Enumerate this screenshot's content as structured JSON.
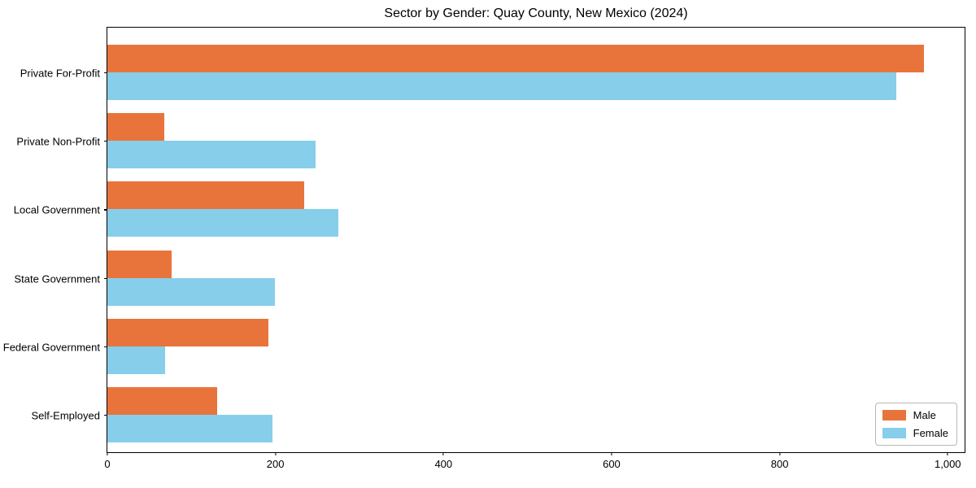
{
  "chart_data": {
    "type": "bar",
    "orientation": "horizontal",
    "title": "Sector by Gender: Quay County, New Mexico (2024)",
    "categories": [
      "Private For-Profit",
      "Private Non-Profit",
      "Local Government",
      "State Government",
      "Federal Government",
      "Self-Employed"
    ],
    "series": [
      {
        "name": "Male",
        "color": "#E8743C",
        "values": [
          972,
          68,
          234,
          76,
          192,
          131
        ]
      },
      {
        "name": "Female",
        "color": "#87CEEB",
        "values": [
          939,
          248,
          275,
          199,
          69,
          196
        ]
      }
    ],
    "xlabel": "",
    "ylabel": "",
    "xlim": [
      0,
      1022
    ],
    "x_ticks": [
      0,
      200,
      400,
      600,
      800,
      1000
    ],
    "x_tick_labels": [
      "0",
      "200",
      "400",
      "600",
      "800",
      "1,000"
    ],
    "grid": false,
    "background": "#ffffff",
    "legend": {
      "position": "lower right",
      "labels": [
        "Male",
        "Female"
      ]
    }
  }
}
